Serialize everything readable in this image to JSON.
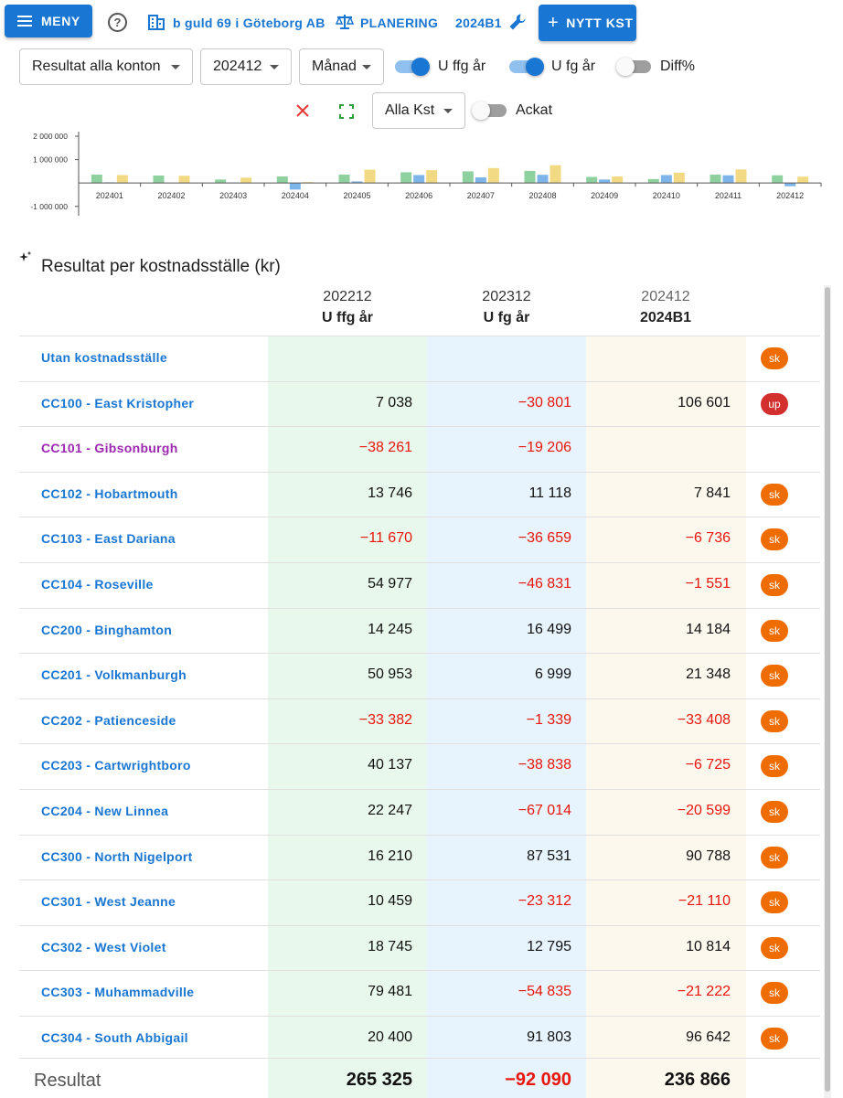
{
  "topbar": {
    "menu_label": "MENY",
    "company": "b guld 69 i Göteborg AB",
    "planning": "PLANERING",
    "budget": "2024B1",
    "new_cc": "NYTT KST"
  },
  "filters": {
    "account_select": "Resultat alla konton",
    "period_select": "202412",
    "interval_select": "Månad",
    "toggle_prev_prev_year": {
      "label": "U ffg år",
      "on": true
    },
    "toggle_prev_year": {
      "label": "U fg år",
      "on": true
    },
    "toggle_diff": {
      "label": "Diff%",
      "on": false
    },
    "kst_select": "Alla Kst",
    "toggle_ackat": {
      "label": "Ackat",
      "on": false
    }
  },
  "colors": {
    "primary": "#1976d2",
    "negative": "#e8160c",
    "badge_sk": "#ef6c00",
    "badge_up": "#d32f2f",
    "bar_green": "#8fd19e",
    "bar_blue": "#7db4ea",
    "bar_yellow": "#f2da85"
  },
  "chart_data": {
    "type": "bar",
    "categories": [
      "202401",
      "202402",
      "202403",
      "202404",
      "202405",
      "202406",
      "202407",
      "202408",
      "202409",
      "202410",
      "202411",
      "202412"
    ],
    "y_tick_labels": [
      "2 000 000",
      "1 000 000",
      "-1 000 000"
    ],
    "ylim": [
      -1400000,
      2000000
    ],
    "grid": false,
    "series": [
      {
        "values": [
          360000,
          320000,
          150000,
          280000,
          360000,
          460000,
          500000,
          520000,
          260000,
          170000,
          360000,
          330000
        ]
      },
      {
        "values": [
          30000,
          0,
          20000,
          -280000,
          70000,
          340000,
          240000,
          350000,
          150000,
          340000,
          330000,
          -140000
        ]
      },
      {
        "values": [
          340000,
          310000,
          230000,
          40000,
          570000,
          550000,
          640000,
          760000,
          280000,
          440000,
          580000,
          270000
        ]
      }
    ]
  },
  "table": {
    "title": "Resultat per kostnadsställe (kr)",
    "columns": [
      {
        "period": "202212",
        "label": "U ffg år"
      },
      {
        "period": "202312",
        "label": "U fg år"
      },
      {
        "period": "202412",
        "label": "2024B1"
      }
    ],
    "rows": [
      {
        "name": "Utan kostnadsställe",
        "v1": "",
        "v2": "",
        "v3": "",
        "badge": "sk"
      },
      {
        "name": "CC100 - East Kristopher",
        "v1": "7 038",
        "v2": "−30 801",
        "v3": "106 601",
        "badge": "up"
      },
      {
        "name": "CC101 - Gibsonburgh",
        "v1": "−38 261",
        "v2": "−19 206",
        "v3": "",
        "badge": "",
        "purple": true
      },
      {
        "name": "CC102 - Hobartmouth",
        "v1": "13 746",
        "v2": "11 118",
        "v3": "7 841",
        "badge": "sk"
      },
      {
        "name": "CC103 - East Dariana",
        "v1": "−11 670",
        "v2": "−36 659",
        "v3": "−6 736",
        "badge": "sk"
      },
      {
        "name": "CC104 - Roseville",
        "v1": "54 977",
        "v2": "−46 831",
        "v3": "−1 551",
        "badge": "sk"
      },
      {
        "name": "CC200 - Binghamton",
        "v1": "14 245",
        "v2": "16 499",
        "v3": "14 184",
        "badge": "sk"
      },
      {
        "name": "CC201 - Volkmanburgh",
        "v1": "50 953",
        "v2": "6 999",
        "v3": "21 348",
        "badge": "sk"
      },
      {
        "name": "CC202 - Patienceside",
        "v1": "−33 382",
        "v2": "−1 339",
        "v3": "−33 408",
        "badge": "sk"
      },
      {
        "name": "CC203 - Cartwrightboro",
        "v1": "40 137",
        "v2": "−38 838",
        "v3": "−6 725",
        "badge": "sk"
      },
      {
        "name": "CC204 - New Linnea",
        "v1": "22 247",
        "v2": "−67 014",
        "v3": "−20 599",
        "badge": "sk"
      },
      {
        "name": "CC300 - North Nigelport",
        "v1": "16 210",
        "v2": "87 531",
        "v3": "90 788",
        "badge": "sk"
      },
      {
        "name": "CC301 - West Jeanne",
        "v1": "10 459",
        "v2": "−23 312",
        "v3": "−21 110",
        "badge": "sk"
      },
      {
        "name": "CC302 - West Violet",
        "v1": "18 745",
        "v2": "12 795",
        "v3": "10 814",
        "badge": "sk"
      },
      {
        "name": "CC303 - Muhammadville",
        "v1": "79 481",
        "v2": "−54 835",
        "v3": "−21 222",
        "badge": "sk"
      },
      {
        "name": "CC304 - South Abbigail",
        "v1": "20 400",
        "v2": "91 803",
        "v3": "96 642",
        "badge": "sk"
      }
    ],
    "total": {
      "label": "Resultat",
      "v1": "265 325",
      "v2": "−92 090",
      "v3": "236 866"
    }
  }
}
